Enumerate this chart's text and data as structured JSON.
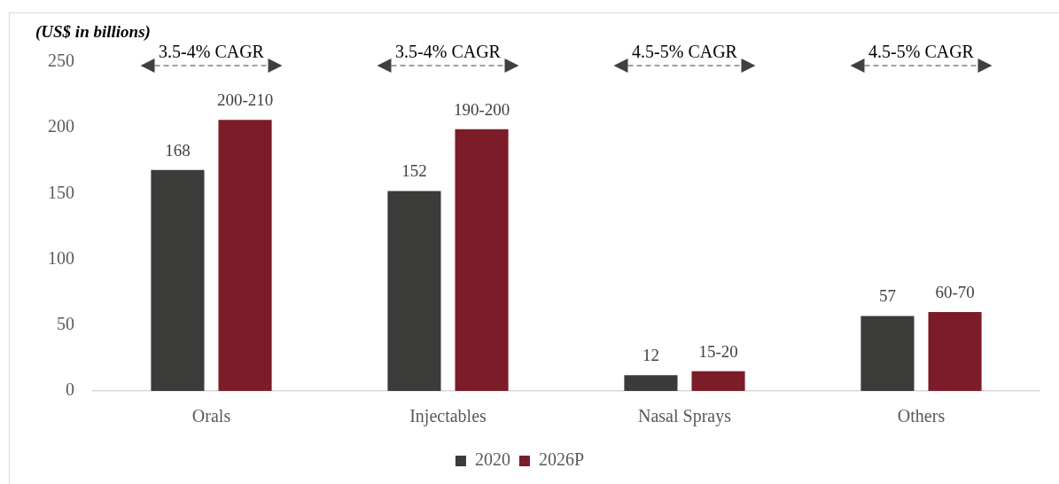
{
  "chart_data": {
    "type": "bar",
    "ylabel": "(US$ in billions)",
    "categories": [
      "Orals",
      "Injectables",
      "Nasal Sprays",
      "Others"
    ],
    "series": [
      {
        "name": "2020",
        "color": "#3b3b3a",
        "values": [
          168,
          152,
          12,
          57
        ],
        "value_labels": [
          "168",
          "152",
          "12",
          "57"
        ]
      },
      {
        "name": "2026P",
        "color": "#7b1c28",
        "values": [
          206,
          199,
          15,
          60
        ],
        "value_labels": [
          "200-210",
          "190-200",
          "15-20",
          "60-70"
        ]
      }
    ],
    "ylim": [
      0,
      250
    ],
    "yticks": [
      0,
      50,
      100,
      150,
      200,
      250
    ],
    "grid": false,
    "legend": "bottom",
    "annotations": [
      "3.5-4% CAGR",
      "3.5-4% CAGR",
      "4.5-5% CAGR",
      "4.5-5% CAGR"
    ]
  }
}
